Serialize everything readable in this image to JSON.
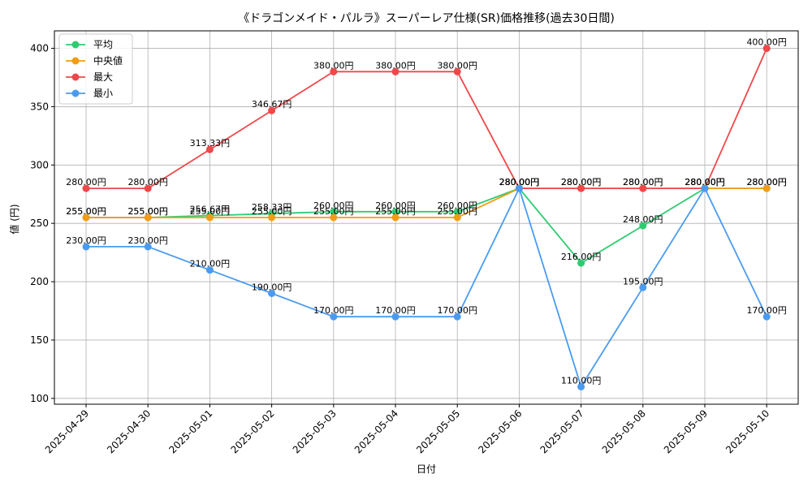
{
  "chart_data": {
    "type": "line",
    "title": "《ドラゴンメイド・パルラ》スーパーレア仕様(SR)価格推移(過去30日間)",
    "xlabel": "日付",
    "ylabel": "値 (円)",
    "x": [
      "2025-04-29",
      "2025-04-30",
      "2025-05-01",
      "2025-05-02",
      "2025-05-03",
      "2025-05-04",
      "2025-05-05",
      "2025-05-06",
      "2025-05-07",
      "2025-05-08",
      "2025-05-09",
      "2025-05-10"
    ],
    "ylim": [
      95,
      415
    ],
    "yticks": [
      100,
      150,
      200,
      250,
      300,
      350,
      400
    ],
    "grid": true,
    "legend_position": "top-left",
    "label_suffix": "円",
    "series": [
      {
        "name": "平均",
        "color": "#2ecc71",
        "values": [
          255,
          255,
          256.67,
          258.33,
          260,
          260,
          260,
          280,
          216,
          248,
          280,
          280
        ]
      },
      {
        "name": "中央値",
        "color": "#f39c12",
        "values": [
          255,
          255,
          255,
          255,
          255,
          255,
          255,
          280,
          280,
          280,
          280,
          280
        ]
      },
      {
        "name": "最大",
        "color": "#f0474a",
        "values": [
          280,
          280,
          313.33,
          346.67,
          380,
          380,
          380,
          280,
          280,
          280,
          280,
          400
        ]
      },
      {
        "name": "最小",
        "color": "#4a9bf0",
        "values": [
          230,
          230,
          210,
          190,
          170,
          170,
          170,
          280,
          110,
          195,
          280,
          170
        ]
      }
    ]
  }
}
